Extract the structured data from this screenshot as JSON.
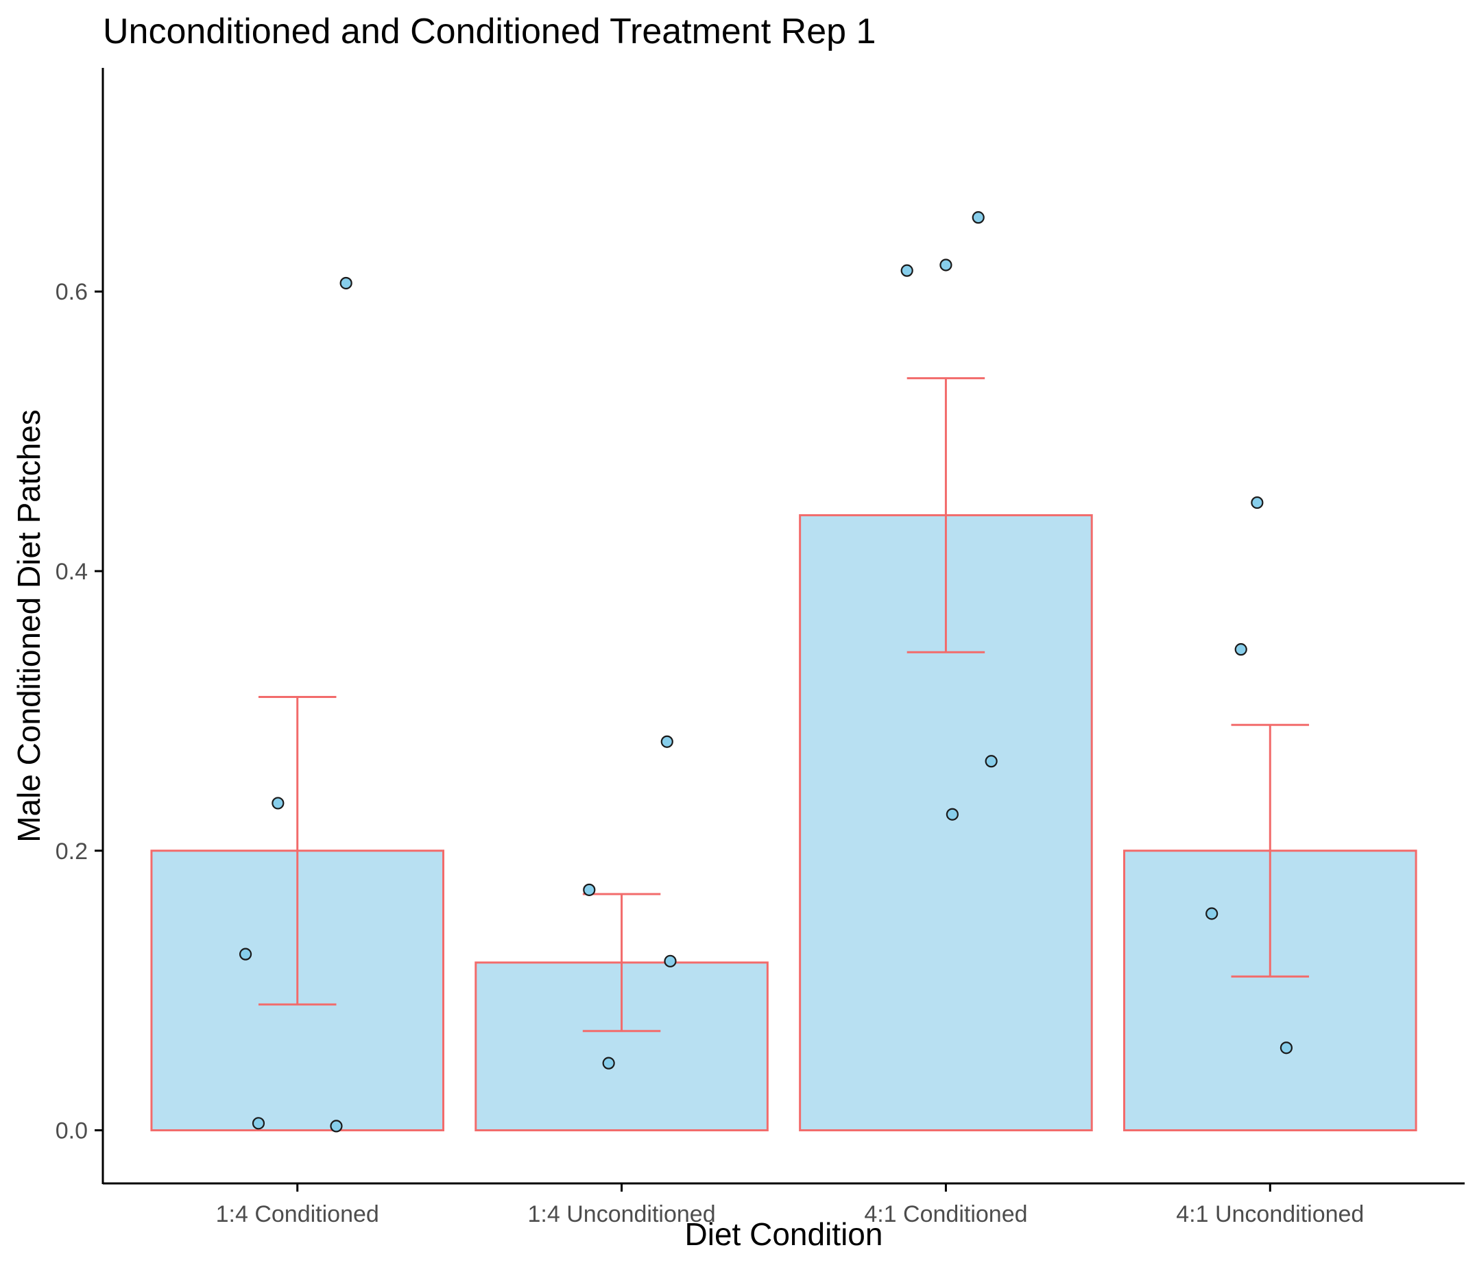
{
  "chart_data": {
    "type": "bar",
    "title": "Unconditioned and Conditioned Treatment Rep 1",
    "xlabel": "Diet Condition",
    "ylabel": "Male Conditioned Diet Patches",
    "categories": [
      "1:4 Conditioned",
      "1:4 Unconditioned",
      "4:1 Conditioned",
      "4:1 Unconditioned"
    ],
    "values": [
      0.2,
      0.12,
      0.44,
      0.2
    ],
    "error_bars": [
      {
        "lower": 0.09,
        "upper": 0.31
      },
      {
        "lower": 0.071,
        "upper": 0.169
      },
      {
        "lower": 0.342,
        "upper": 0.538
      },
      {
        "lower": 0.11,
        "upper": 0.29
      }
    ],
    "points": [
      [
        {
          "x_offset": -0.16,
          "y": 0.126
        },
        {
          "x_offset": -0.12,
          "y": 0.005
        },
        {
          "x_offset": -0.06,
          "y": 0.234
        },
        {
          "x_offset": 0.12,
          "y": 0.003
        },
        {
          "x_offset": 0.15,
          "y": 0.606
        }
      ],
      [
        {
          "x_offset": -0.1,
          "y": 0.172
        },
        {
          "x_offset": -0.04,
          "y": 0.048
        },
        {
          "x_offset": 0.14,
          "y": 0.278
        },
        {
          "x_offset": 0.15,
          "y": 0.121
        }
      ],
      [
        {
          "x_offset": -0.12,
          "y": 0.615
        },
        {
          "x_offset": 0.0,
          "y": 0.619
        },
        {
          "x_offset": 0.02,
          "y": 0.226
        },
        {
          "x_offset": 0.1,
          "y": 0.653
        },
        {
          "x_offset": 0.14,
          "y": 0.264
        }
      ],
      [
        {
          "x_offset": -0.18,
          "y": 0.155
        },
        {
          "x_offset": -0.09,
          "y": 0.344
        },
        {
          "x_offset": -0.04,
          "y": 0.449
        },
        {
          "x_offset": 0.05,
          "y": 0.059
        }
      ]
    ],
    "yticks": [
      0.0,
      0.2,
      0.4,
      0.6
    ],
    "ytick_labels": [
      "0.0",
      "0.2",
      "0.4",
      "0.6"
    ],
    "ylim": [
      -0.038,
      0.76
    ],
    "grid": false,
    "colors": {
      "bar_fill": "#b8e0f2",
      "bar_stroke": "#f26b6b",
      "error_bar": "#f26b6b",
      "point_fill": "#87ceeb",
      "point_stroke": "#1a1a1a",
      "axis": "#000000"
    }
  }
}
